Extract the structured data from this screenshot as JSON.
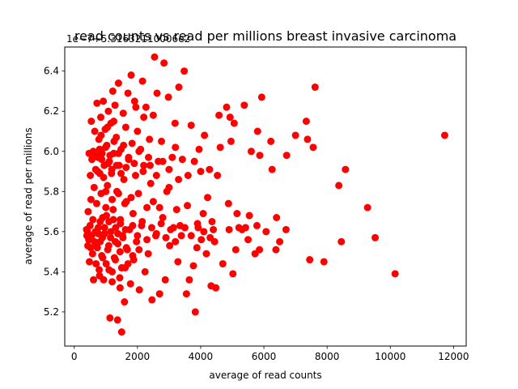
{
  "chart_data": {
    "type": "scatter",
    "title": "read counts vs read per millions breast invasive carcinoma",
    "xlabel": "average of read counts",
    "ylabel": "average of read per millions",
    "offset_text": "1e−7+5.31632110006e2",
    "xlim": [
      -300,
      12400
    ],
    "ylim": [
      5.03,
      6.52
    ],
    "xticks": [
      0,
      2000,
      4000,
      6000,
      8000,
      10000,
      12000
    ],
    "yticks": [
      5.2,
      5.4,
      5.6,
      5.8,
      6.0,
      6.2,
      6.4
    ],
    "xtick_labels": [
      "0",
      "2000",
      "4000",
      "6000",
      "8000",
      "10000",
      "12000"
    ],
    "ytick_labels": [
      "5.2",
      "5.4",
      "5.6",
      "5.8",
      "6.0",
      "6.2",
      "6.4"
    ],
    "marker_color": "#ff0000",
    "grid": false,
    "legend": "none",
    "points": [
      [
        11720,
        6.08
      ],
      [
        10150,
        5.39
      ],
      [
        9520,
        5.57
      ],
      [
        9280,
        5.72
      ],
      [
        8580,
        5.91
      ],
      [
        8450,
        5.55
      ],
      [
        8370,
        5.83
      ],
      [
        7900,
        5.45
      ],
      [
        7620,
        6.32
      ],
      [
        7560,
        6.02
      ],
      [
        7450,
        5.46
      ],
      [
        7380,
        6.06
      ],
      [
        7340,
        6.15
      ],
      [
        7000,
        6.08
      ],
      [
        6720,
        5.98
      ],
      [
        6700,
        5.61
      ],
      [
        6500,
        5.55
      ],
      [
        6400,
        5.67
      ],
      [
        6380,
        5.51
      ],
      [
        6260,
        5.91
      ],
      [
        6220,
        6.05
      ],
      [
        6070,
        5.6
      ],
      [
        5930,
        6.27
      ],
      [
        5870,
        5.98
      ],
      [
        5860,
        5.51
      ],
      [
        5800,
        6.1
      ],
      [
        5780,
        5.63
      ],
      [
        5720,
        5.49
      ],
      [
        5600,
        6.0
      ],
      [
        5540,
        5.68
      ],
      [
        5500,
        5.56
      ],
      [
        5420,
        5.62
      ],
      [
        5380,
        6.23
      ],
      [
        5310,
        5.61
      ],
      [
        5210,
        5.62
      ],
      [
        5150,
        5.69
      ],
      [
        5110,
        5.51
      ],
      [
        5060,
        6.14
      ],
      [
        5020,
        5.39
      ],
      [
        4960,
        6.05
      ],
      [
        4930,
        6.17
      ],
      [
        4900,
        5.61
      ],
      [
        4880,
        5.74
      ],
      [
        4820,
        6.22
      ],
      [
        4700,
        5.44
      ],
      [
        4620,
        6.02
      ],
      [
        4580,
        6.18
      ],
      [
        4530,
        5.88
      ],
      [
        4480,
        5.32
      ],
      [
        4440,
        5.55
      ],
      [
        4400,
        5.61
      ],
      [
        4360,
        5.65
      ],
      [
        4330,
        5.33
      ],
      [
        4280,
        5.91
      ],
      [
        4220,
        5.77
      ],
      [
        4180,
        5.49
      ],
      [
        4120,
        6.08
      ],
      [
        4080,
        5.69
      ],
      [
        4020,
        5.56
      ],
      [
        3950,
        6.01
      ],
      [
        3920,
        5.62
      ],
      [
        3880,
        5.52
      ],
      [
        3830,
        5.2
      ],
      [
        3770,
        5.43
      ],
      [
        3700,
        6.13
      ],
      [
        3640,
        5.36
      ],
      [
        3580,
        5.73
      ],
      [
        3550,
        5.29
      ],
      [
        3480,
        6.4
      ],
      [
        3420,
        5.96
      ],
      [
        3390,
        5.58
      ],
      [
        3310,
        6.32
      ],
      [
        3280,
        5.45
      ],
      [
        3240,
        5.71
      ],
      [
        3190,
        6.14
      ],
      [
        3140,
        5.62
      ],
      [
        3100,
        5.97
      ],
      [
        3020,
        5.53
      ],
      [
        2980,
        6.27
      ],
      [
        2930,
        5.8
      ],
      [
        2880,
        5.36
      ],
      [
        2840,
        6.44
      ],
      [
        2800,
        5.67
      ],
      [
        2760,
        6.05
      ],
      [
        2700,
        5.29
      ],
      [
        2660,
        5.95
      ],
      [
        2620,
        6.29
      ],
      [
        2580,
        5.58
      ],
      [
        2540,
        6.47
      ],
      [
        2500,
        6.18
      ],
      [
        2460,
        5.26
      ],
      [
        2420,
        5.84
      ],
      [
        2380,
        6.06
      ],
      [
        2340,
        5.49
      ],
      [
        2300,
        5.72
      ],
      [
        2270,
        6.22
      ],
      [
        2240,
        5.4
      ],
      [
        2200,
        5.93
      ],
      [
        2160,
        6.35
      ],
      [
        2130,
        5.63
      ],
      [
        2100,
        6.01
      ],
      [
        2060,
        5.31
      ],
      [
        2030,
        5.79
      ],
      [
        2000,
        6.1
      ],
      [
        1970,
        5.55
      ],
      [
        1940,
        5.88
      ],
      [
        1910,
        6.25
      ],
      [
        1880,
        5.46
      ],
      [
        1860,
        5.69
      ],
      [
        1830,
        6.04
      ],
      [
        1800,
        6.38
      ],
      [
        1780,
        5.34
      ],
      [
        1750,
        5.61
      ],
      [
        1720,
        5.97
      ],
      [
        1700,
        6.29
      ],
      [
        1680,
        5.51
      ],
      [
        1650,
        5.75
      ],
      [
        1630,
        6.12
      ],
      [
        1610,
        5.42
      ],
      [
        1590,
        5.25
      ],
      [
        1570,
        5.86
      ],
      [
        1550,
        6.19
      ],
      [
        1530,
        5.58
      ],
      [
        1500,
        5.1
      ],
      [
        1480,
        6.01
      ],
      [
        1460,
        5.66
      ],
      [
        1440,
        5.37
      ],
      [
        1420,
        5.93
      ],
      [
        1400,
        6.34
      ],
      [
        1380,
        5.54
      ],
      [
        1370,
        5.16
      ],
      [
        1350,
        5.8
      ],
      [
        1330,
        6.07
      ],
      [
        1310,
        5.62
      ],
      [
        1290,
        6.23
      ],
      [
        1270,
        5.47
      ],
      [
        1250,
        5.99
      ],
      [
        1230,
        5.71
      ],
      [
        1220,
        6.3
      ],
      [
        1200,
        5.4
      ],
      [
        1180,
        5.89
      ],
      [
        1160,
        6.14
      ],
      [
        1150,
        5.57
      ],
      [
        1130,
        5.17
      ],
      [
        1110,
        5.95
      ],
      [
        1100,
        5.65
      ],
      [
        1080,
        6.2
      ],
      [
        1060,
        5.51
      ],
      [
        1050,
        5.83
      ],
      [
        1030,
        6.03
      ],
      [
        1010,
        5.44
      ],
      [
        1000,
        5.72
      ],
      [
        980,
        6.11
      ],
      [
        960,
        5.59
      ],
      [
        950,
        5.93
      ],
      [
        930,
        5.36
      ],
      [
        920,
        6.25
      ],
      [
        900,
        5.67
      ],
      [
        880,
        5.99
      ],
      [
        870,
        5.48
      ],
      [
        850,
        5.79
      ],
      [
        840,
        6.17
      ],
      [
        820,
        5.55
      ],
      [
        810,
        5.89
      ],
      [
        790,
        5.41
      ],
      [
        780,
        6.06
      ],
      [
        760,
        5.62
      ],
      [
        750,
        5.97
      ],
      [
        730,
        5.52
      ],
      [
        720,
        6.24
      ],
      [
        710,
        5.74
      ],
      [
        690,
        5.44
      ],
      [
        680,
        5.91
      ],
      [
        670,
        5.6
      ],
      [
        650,
        6.1
      ],
      [
        640,
        5.55
      ],
      [
        630,
        5.82
      ],
      [
        610,
        5.36
      ],
      [
        600,
        6.0
      ],
      [
        590,
        5.66
      ],
      [
        580,
        5.49
      ],
      [
        560,
        5.96
      ],
      [
        550,
        5.58
      ],
      [
        540,
        6.15
      ],
      [
        530,
        5.76
      ],
      [
        520,
        5.52
      ],
      [
        510,
        5.88
      ],
      [
        500,
        5.63
      ],
      [
        480,
        5.45
      ],
      [
        470,
        5.99
      ],
      [
        460,
        5.56
      ],
      [
        440,
        5.7
      ],
      [
        430,
        5.53
      ],
      [
        420,
        5.6
      ],
      [
        400,
        5.58
      ],
      [
        390,
        5.61
      ],
      [
        1720,
        5.96
      ],
      [
        1640,
        5.92
      ],
      [
        1560,
        6.03
      ],
      [
        1480,
        5.89
      ],
      [
        1400,
        5.99
      ],
      [
        1340,
        5.93
      ],
      [
        1260,
        6.05
      ],
      [
        1190,
        5.91
      ],
      [
        1130,
        5.98
      ],
      [
        1070,
        5.94
      ],
      [
        990,
        6.02
      ],
      [
        930,
        5.87
      ],
      [
        870,
        5.96
      ],
      [
        800,
        6.01
      ],
      [
        740,
        5.9
      ],
      [
        680,
        5.98
      ],
      [
        1900,
        5.94
      ],
      [
        2050,
        6.0
      ],
      [
        2180,
        5.9
      ],
      [
        2350,
        5.97
      ],
      [
        1620,
        5.61
      ],
      [
        1540,
        5.57
      ],
      [
        1460,
        5.64
      ],
      [
        1380,
        5.59
      ],
      [
        1300,
        5.55
      ],
      [
        1240,
        5.66
      ],
      [
        1160,
        5.6
      ],
      [
        1090,
        5.53
      ],
      [
        1020,
        5.68
      ],
      [
        960,
        5.62
      ],
      [
        890,
        5.57
      ],
      [
        820,
        5.65
      ],
      [
        760,
        5.59
      ],
      [
        700,
        5.54
      ],
      [
        1850,
        5.63
      ],
      [
        2000,
        5.58
      ],
      [
        2150,
        5.65
      ],
      [
        2300,
        5.56
      ],
      [
        2450,
        5.62
      ],
      [
        2600,
        5.59
      ],
      [
        2750,
        5.64
      ],
      [
        2900,
        5.57
      ],
      [
        3050,
        5.61
      ],
      [
        3200,
        5.55
      ],
      [
        3350,
        5.63
      ],
      [
        1700,
        5.44
      ],
      [
        1500,
        5.42
      ],
      [
        1300,
        5.46
      ],
      [
        1100,
        5.41
      ],
      [
        900,
        5.47
      ],
      [
        1800,
        5.77
      ],
      [
        1600,
        5.74
      ],
      [
        1400,
        5.79
      ],
      [
        1200,
        5.76
      ],
      [
        1000,
        5.8
      ],
      [
        2400,
        5.93
      ],
      [
        2600,
        5.88
      ],
      [
        2800,
        5.95
      ],
      [
        3000,
        5.91
      ],
      [
        3200,
        6.02
      ],
      [
        3600,
        5.88
      ],
      [
        3800,
        5.95
      ],
      [
        4000,
        5.9
      ],
      [
        3500,
        5.62
      ],
      [
        3700,
        5.58
      ],
      [
        3900,
        5.64
      ],
      [
        4100,
        5.6
      ],
      [
        4300,
        5.57
      ],
      [
        2200,
        6.17
      ],
      [
        1950,
        6.22
      ],
      [
        1250,
        6.15
      ],
      [
        1050,
        6.12
      ],
      [
        850,
        6.08
      ],
      [
        2500,
        5.75
      ],
      [
        2700,
        5.72
      ],
      [
        3000,
        5.82
      ],
      [
        3300,
        5.86
      ],
      [
        1450,
        5.5
      ],
      [
        1650,
        5.52
      ],
      [
        1850,
        5.48
      ],
      [
        2050,
        5.51
      ],
      [
        1200,
        5.35
      ],
      [
        1450,
        5.32
      ],
      [
        800,
        5.38
      ]
    ]
  }
}
